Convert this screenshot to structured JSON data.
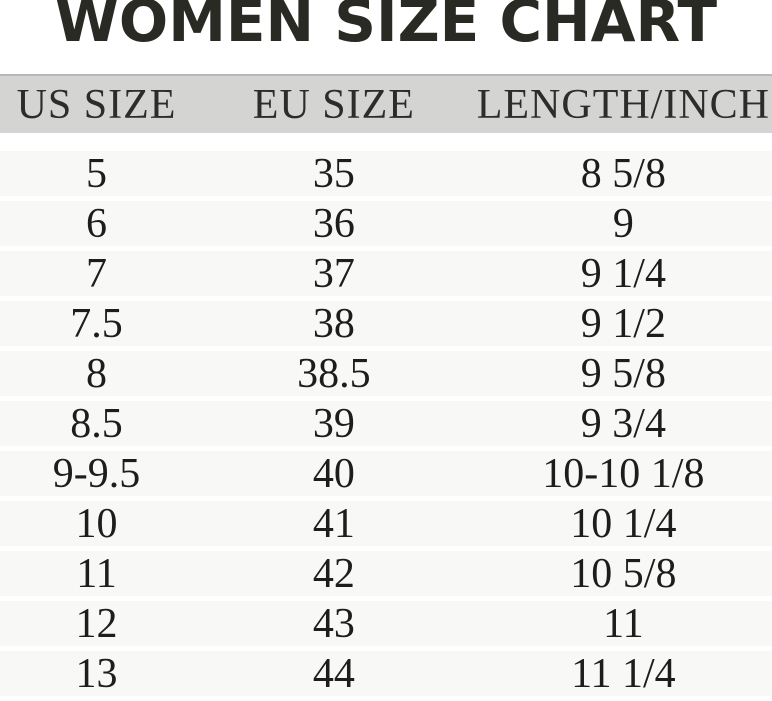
{
  "title": "WOMEN SIZE CHART",
  "chart_data": {
    "type": "table",
    "title": "WOMEN SIZE CHART",
    "columns": [
      "US SIZE",
      "EU SIZE",
      "LENGTH/INCH"
    ],
    "rows": [
      [
        "5",
        "35",
        "8 5/8"
      ],
      [
        "6",
        "36",
        "9"
      ],
      [
        "7",
        "37",
        "9 1/4"
      ],
      [
        "7.5",
        "38",
        "9 1/2"
      ],
      [
        "8",
        "38.5",
        "9 5/8"
      ],
      [
        "8.5",
        "39",
        "9 3/4"
      ],
      [
        "9-9.5",
        "40",
        "10-10 1/8"
      ],
      [
        "10",
        "41",
        "10 1/4"
      ],
      [
        "11",
        "42",
        "10 5/8"
      ],
      [
        "12",
        "43",
        "11"
      ],
      [
        "13",
        "44",
        "11 1/4"
      ]
    ]
  },
  "colors": {
    "page_bg": "#ffffff",
    "title_text": "#2a2a25",
    "header_bg": "#d4d4d2",
    "header_border_top": "#b7b7b5",
    "header_text": "#2c2c2a",
    "row_bg": "#f8f8f6",
    "row_gap": "#ffffff",
    "cell_text": "#1d1d1b"
  }
}
